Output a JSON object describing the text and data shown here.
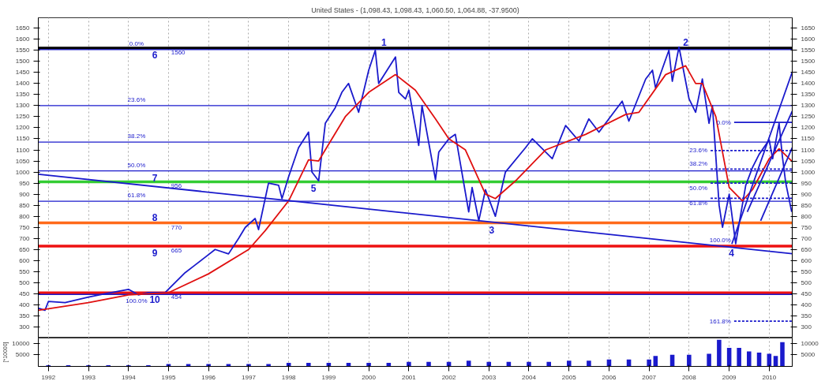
{
  "chart_data": [
    {
      "type": "line",
      "title": "United States - (1,098.43, 1,098.43, 1,060.50, 1,064.88, -37.9500)",
      "xlim": [
        "1991-10",
        "2010-07-30"
      ],
      "ylim": [
        250,
        1697
      ],
      "y2lim": [
        250,
        1697
      ],
      "xticks": [
        "1992",
        "1993",
        "1994",
        "1995",
        "1996",
        "1997",
        "1998",
        "1999",
        "2000",
        "2001",
        "2002",
        "2003",
        "2004",
        "2005",
        "2006",
        "2007",
        "2008",
        "2009",
        "2010"
      ],
      "yticks": [
        300,
        350,
        400,
        450,
        500,
        550,
        600,
        650,
        700,
        750,
        800,
        850,
        900,
        950,
        1000,
        1050,
        1100,
        1150,
        1200,
        1250,
        1300,
        1350,
        1400,
        1450,
        1500,
        1550,
        1600,
        1650
      ],
      "y2ticks": [
        300,
        350,
        400,
        450,
        500,
        550,
        600,
        650,
        700,
        750,
        800,
        850,
        900,
        950,
        1000,
        1050,
        1100,
        1150,
        1200,
        1250,
        1300,
        1350,
        1400,
        1450,
        1500,
        1550,
        1600,
        1650
      ],
      "tick_labels": "y",
      "grid": "x",
      "series": [
        {
          "color": "#1a1acc",
          "x": [
            "1991-10",
            "1991-12",
            "1992-01",
            "1992-06",
            "1993-01",
            "1993-06",
            "1994-01",
            "1994-04",
            "1994-07",
            "1994-12",
            "1995-03",
            "1995-06",
            "1995-09",
            "1995-12",
            "1996-03",
            "1996-07",
            "1996-10",
            "1996-12",
            "1997-03",
            "1997-04",
            "1997-07",
            "1997-10",
            "1997-11",
            "1998-01",
            "1998-04",
            "1998-07",
            "1998-08",
            "1998-10",
            "1998-12",
            "1999-03",
            "1999-05",
            "1999-07",
            "1999-10",
            "2000-01",
            "2000-03",
            "2000-04",
            "2000-09",
            "2000-10",
            "2000-12",
            "2001-01",
            "2001-04",
            "2001-05",
            "2001-09",
            "2001-10",
            "2002-01",
            "2002-03",
            "2002-07",
            "2002-08",
            "2002-10",
            "2002-12",
            "2003-03",
            "2003-06",
            "2003-12",
            "2004-02",
            "2004-08",
            "2004-12",
            "2005-04",
            "2005-07",
            "2005-10",
            "2006-05",
            "2006-07",
            "2006-12",
            "2007-02",
            "2007-03",
            "2007-07",
            "2007-08",
            "2007-10",
            "2008-01",
            "2008-03",
            "2008-05",
            "2008-07",
            "2008-08",
            "2008-10",
            "2008-11",
            "2009-01",
            "2009-03",
            "2009-06",
            "2009-08",
            "2009-10",
            "2010-01",
            "2010-02",
            "2010-04",
            "2010-05",
            "2010-06",
            "2010-07-25"
          ],
          "values": [
            385,
            375,
            415,
            410,
            435,
            450,
            470,
            445,
            455,
            455,
            500,
            545,
            580,
            615,
            650,
            630,
            700,
            750,
            790,
            740,
            950,
            940,
            880,
            980,
            1110,
            1180,
            1000,
            960,
            1220,
            1290,
            1360,
            1400,
            1270,
            1460,
            1550,
            1400,
            1520,
            1360,
            1330,
            1370,
            1120,
            1300,
            965,
            1090,
            1150,
            1170,
            820,
            930,
            780,
            920,
            800,
            1000,
            1110,
            1150,
            1060,
            1210,
            1140,
            1240,
            1180,
            1320,
            1230,
            1420,
            1460,
            1380,
            1550,
            1410,
            1565,
            1330,
            1270,
            1420,
            1220,
            1300,
            850,
            750,
            900,
            676,
            940,
            1020,
            1080,
            1145,
            1060,
            1220,
            1070,
            950,
            820
          ]
        },
        {
          "color": "#e01010",
          "x": [
            "1991-10",
            "1993-01",
            "1994-01",
            "1995-01",
            "1996-01",
            "1997-01",
            "1997-06",
            "1998-01",
            "1998-07",
            "1998-10",
            "1999-06",
            "2000-01",
            "2000-09",
            "2001-03",
            "2001-09",
            "2002-01",
            "2002-06",
            "2002-12",
            "2003-03",
            "2003-09",
            "2004-06",
            "2005-06",
            "2006-06",
            "2006-10",
            "2007-06",
            "2007-12",
            "2008-03",
            "2008-05",
            "2008-09",
            "2009-01",
            "2009-05",
            "2009-08",
            "2010-01",
            "2010-04",
            "2010-07-25"
          ],
          "values": [
            375,
            410,
            445,
            455,
            540,
            650,
            735,
            870,
            1055,
            1050,
            1250,
            1360,
            1440,
            1370,
            1240,
            1150,
            1100,
            900,
            880,
            960,
            1100,
            1170,
            1260,
            1270,
            1440,
            1480,
            1400,
            1400,
            1250,
            930,
            870,
            920,
            1060,
            1105,
            1050
          ]
        },
        {
          "color": "#1a1acc",
          "x": [
            "1991-10",
            "2010-07-30"
          ],
          "values": [
            990,
            631
          ]
        },
        {
          "color": "#1a1acc",
          "x": [
            "2009-01-25",
            "2010-07-30"
          ],
          "values": [
            675,
            1452
          ]
        },
        {
          "color": "#1a1acc",
          "x": [
            "2009-06-15",
            "2010-07-30"
          ],
          "values": [
            820,
            1275
          ]
        },
        {
          "color": "#1a1acc",
          "x": [
            "2009-10-15",
            "2010-07-30"
          ],
          "values": [
            780,
            1110
          ]
        },
        {
          "color": "#1a1acc",
          "x": [
            "2009-02-15",
            "2010-07-30"
          ],
          "values": [
            1224,
            1224
          ]
        },
        {
          "color": "#1a1acc",
          "line_style": "dashed",
          "x": [
            "2008-07-15",
            "2010-07-30"
          ],
          "values": [
            1097,
            1097
          ]
        },
        {
          "color": "#1a1acc",
          "line_style": "dashed",
          "x": [
            "2008-07-15",
            "2010-07-30"
          ],
          "values": [
            1013,
            1013
          ]
        },
        {
          "color": "#1a1acc",
          "line_style": "dashed",
          "x": [
            "2008-07-15",
            "2010-07-30"
          ],
          "values": [
            950,
            950
          ]
        },
        {
          "color": "#1a1acc",
          "line_style": "dashed",
          "x": [
            "2008-07-15",
            "2010-07-30"
          ],
          "values": [
            881,
            881
          ]
        },
        {
          "color": "#1a1acc",
          "line_style": "dashed",
          "x": [
            "2009-02-15",
            "2010-07-30"
          ],
          "values": [
            326,
            326
          ]
        }
      ],
      "ref_lines": [
        {
          "axis": "y",
          "value": 1560,
          "label": "1560",
          "color": "#000000"
        },
        {
          "axis": "y",
          "value": 1553,
          "color": "#1a1acc"
        },
        {
          "axis": "y",
          "value": 1300,
          "color": "#1a1acc"
        },
        {
          "axis": "y",
          "value": 1135,
          "color": "#1a1acc"
        },
        {
          "axis": "y",
          "value": 1005,
          "color": "#1a1acc"
        },
        {
          "axis": "y",
          "value": 956,
          "label": "956",
          "color": "#33cc33"
        },
        {
          "axis": "y",
          "value": 868,
          "color": "#1a1acc"
        },
        {
          "axis": "y",
          "value": 770,
          "label": "770",
          "color": "#ff6a1a"
        },
        {
          "axis": "y",
          "value": 665,
          "label": "665",
          "color": "#ee1111"
        },
        {
          "axis": "y",
          "value": 454,
          "label": "454",
          "color": "#ee1111"
        },
        {
          "axis": "y",
          "value": 447,
          "color": "#1a1acc"
        }
      ],
      "annotations": [
        {
          "text": "1",
          "x": "2000-05-18",
          "y": 1560
        },
        {
          "text": "2",
          "x": "2007-12-01",
          "y": 1560
        },
        {
          "text": "3",
          "x": "2003-01-26",
          "y": 770
        },
        {
          "text": "4",
          "x": "2009-01-22",
          "y": 665
        },
        {
          "text": "5",
          "x": "1998-08-15",
          "y": 956
        },
        {
          "text": "6",
          "x": "1994-08-29",
          "y": 1560
        },
        {
          "text": "7",
          "x": "1994-08-29",
          "y": 1005
        },
        {
          "text": "8",
          "x": "1994-08-29",
          "y": 770
        },
        {
          "text": "9",
          "x": "1994-08-29",
          "y": 665
        },
        {
          "text": "10",
          "x": "1994-08-29",
          "y": 454
        },
        {
          "text": "0.0%",
          "x": "1994-03-15",
          "y": 1553
        },
        {
          "text": "23.6%",
          "x": "1994-03-15",
          "y": 1300
        },
        {
          "text": "38.2%",
          "x": "1994-03-15",
          "y": 1135
        },
        {
          "text": "50.0%",
          "x": "1994-03-15",
          "y": 1005
        },
        {
          "text": "61.8%",
          "x": "1994-03-15",
          "y": 868
        },
        {
          "text": "100.0%",
          "x": "1994-03-15",
          "y": 447
        },
        {
          "text": "0.0%",
          "x": "2009-02-15",
          "y": 1224
        },
        {
          "text": "23.6%",
          "x": "2008-07-15",
          "y": 1097
        },
        {
          "text": "38.2%",
          "x": "2008-07-15",
          "y": 1013
        },
        {
          "text": "50.0%",
          "x": "2008-07-15",
          "y": 950
        },
        {
          "text": "61.8%",
          "x": "2008-07-15",
          "y": 881
        },
        {
          "text": "100.0%",
          "x": "2009-02-15",
          "y": 665
        },
        {
          "text": "161.8%",
          "x": "2009-02-15",
          "y": 326
        }
      ]
    },
    {
      "type": "bar",
      "ylabel": "[*10000]",
      "color": "#1a1acc",
      "xlim": [
        "1991-10",
        "2010-07-30"
      ],
      "ylim": [
        0,
        12300
      ],
      "y2lim": [
        0,
        12300
      ],
      "xticks": [
        "1992",
        "1993",
        "1994",
        "1995",
        "1996",
        "1997",
        "1998",
        "1999",
        "2000",
        "2001",
        "2002",
        "2003",
        "2004",
        "2005",
        "2006",
        "2007",
        "2008",
        "2009",
        "2010"
      ],
      "yticks": [
        5000,
        10000
      ],
      "y2ticks": [
        5000,
        10000
      ],
      "grid": "x",
      "x": [
        "1992-01",
        "1992-07",
        "1993-01",
        "1993-07",
        "1994-01",
        "1994-07",
        "1995-01",
        "1995-07",
        "1996-01",
        "1996-07",
        "1997-01",
        "1997-07",
        "1998-01",
        "1998-07",
        "1999-01",
        "1999-07",
        "2000-01",
        "2000-07",
        "2001-01",
        "2001-07",
        "2002-01",
        "2002-07",
        "2003-01",
        "2003-07",
        "2004-01",
        "2004-07",
        "2005-01",
        "2005-07",
        "2006-01",
        "2006-07",
        "2007-01",
        "2007-03",
        "2007-08",
        "2008-01",
        "2008-07",
        "2008-10",
        "2009-01",
        "2009-04",
        "2009-07",
        "2009-10",
        "2010-01",
        "2010-03",
        "2010-05"
      ],
      "values": [
        500,
        500,
        500,
        500,
        500,
        500,
        1000,
        1000,
        1000,
        1000,
        1000,
        1000,
        1500,
        1500,
        1500,
        1500,
        1500,
        1500,
        2000,
        2000,
        2000,
        2500,
        2000,
        2000,
        2000,
        2000,
        2500,
        2500,
        3000,
        3000,
        3000,
        4500,
        5000,
        5000,
        5500,
        11500,
        8000,
        8000,
        6500,
        6000,
        5500,
        4500,
        10500
      ]
    }
  ]
}
